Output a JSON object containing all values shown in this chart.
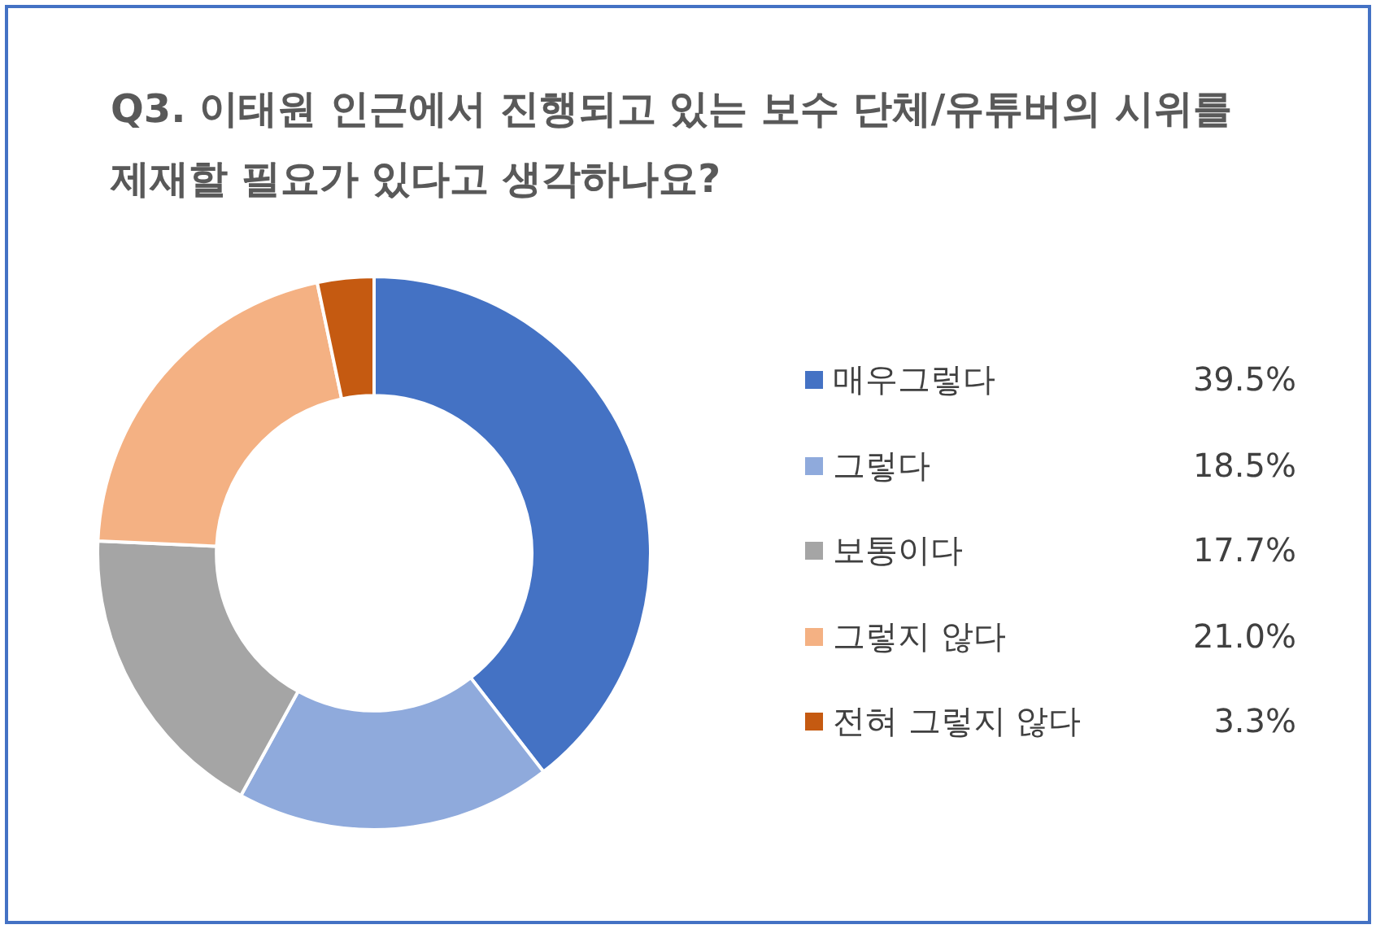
{
  "chart_data": {
    "type": "donut",
    "title": "Q3. 이태원 인근에서 진행되고 있는 보수 단체/유튜버의 시위를 제재할 필요가 있다고 생각하나요?",
    "categories": [
      "매우그렇다",
      "그렇다",
      "보통이다",
      "그렇지 않다",
      "전혀 그렇지 않다"
    ],
    "values": [
      39.5,
      18.5,
      17.7,
      21.0,
      3.3
    ],
    "colors": [
      "#4472c4",
      "#8faadc",
      "#a5a5a5",
      "#f4b183",
      "#c55a11"
    ],
    "value_labels": [
      "39.5%",
      "18.5%",
      "17.7%",
      "21.0%",
      "3.3%"
    ],
    "legend": "right"
  }
}
